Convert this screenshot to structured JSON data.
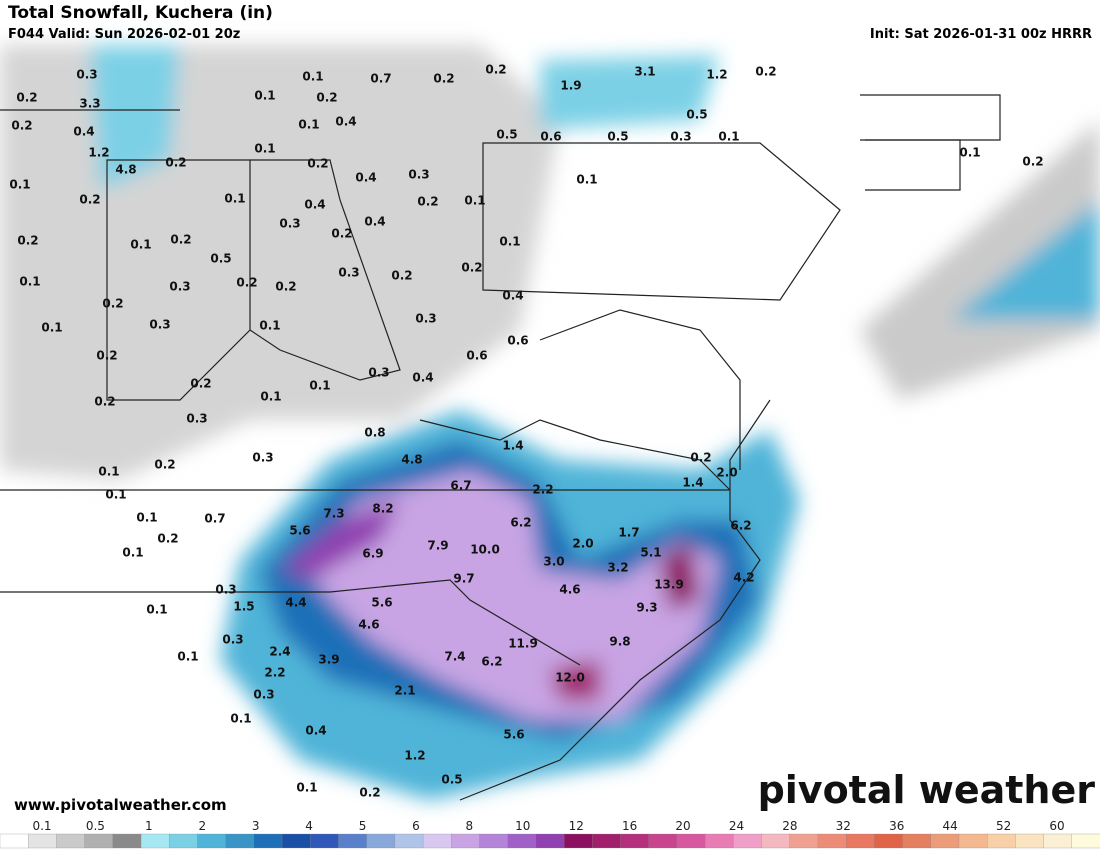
{
  "header": {
    "title": "Total Snowfall, Kuchera (in)",
    "valid": "F044 Valid: Sun 2026-02-01 20z",
    "init": "Init: Sat 2026-01-31 00z HRRR"
  },
  "footer": {
    "site": "www.pivotalweather.com",
    "logo": "pivotal weather"
  },
  "colorbar": {
    "labels": [
      "0.1",
      "0.5",
      "1",
      "2",
      "3",
      "4",
      "5",
      "6",
      "8",
      "10",
      "12",
      "16",
      "20",
      "24",
      "28",
      "32",
      "36",
      "44",
      "52",
      "60"
    ],
    "colors": [
      "#ffffff",
      "#e4e4e4",
      "#cacaca",
      "#b0b0b0",
      "#8a8a8a",
      "#a6e8f2",
      "#7cd0e6",
      "#4fb4d8",
      "#3a94c6",
      "#1f6fb8",
      "#1a4fa6",
      "#3058b8",
      "#5a80cc",
      "#88a8dc",
      "#b0c4e8",
      "#d8c8f0",
      "#c8a4e4",
      "#b484d8",
      "#a060c8",
      "#9040b0",
      "#8c1060",
      "#a0206c",
      "#b4307c",
      "#c8448c",
      "#d858a0",
      "#e87cb4",
      "#f0a0c8",
      "#f4b8c0",
      "#f0a090",
      "#ec8c78",
      "#e87860",
      "#e06448",
      "#e48060",
      "#ec9c78",
      "#f4b890",
      "#f8d0a8",
      "#fae4c0",
      "#fcf0d4",
      "#fefadc"
    ]
  },
  "map": {
    "labels": [
      "0.3",
      "0.1",
      "0.7",
      "0.2",
      "0.2",
      "3.1",
      "1.2",
      "0.2",
      "0.2",
      "3.3",
      "0.1",
      "0.2",
      "1.9",
      "0.2",
      "0.4",
      "0.1",
      "0.4",
      "0.5",
      "0.5",
      "0.6",
      "0.5",
      "0.3",
      "0.1",
      "1.2",
      "0.1",
      "4.8",
      "0.2",
      "0.2",
      "0.4",
      "0.3",
      "0.1",
      "0.2",
      "0.1",
      "0.2",
      "0.1",
      "0.4",
      "0.2",
      "0.1",
      "0.1",
      "0.3",
      "0.4",
      "0.2",
      "0.2",
      "0.1",
      "0.2",
      "0.1",
      "0.5",
      "0.3",
      "0.2",
      "0.2",
      "0.1",
      "0.3",
      "0.2",
      "0.2",
      "0.4",
      "0.2",
      "0.1",
      "0.3",
      "0.1",
      "0.3",
      "0.6",
      "0.2",
      "0.6",
      "0.3",
      "0.4",
      "0.2",
      "0.1",
      "0.1",
      "0.2",
      "0.3",
      "0.8",
      "1.4",
      "0.3",
      "4.8",
      "0.2",
      "2.0",
      "0.1",
      "0.2",
      "6.7",
      "1.4",
      "2.2",
      "0.1",
      "8.2",
      "7.3",
      "0.1",
      "0.7",
      "6.2",
      "6.2",
      "1.7",
      "5.6",
      "0.2",
      "2.0",
      "7.9",
      "10.0",
      "5.1",
      "6.9",
      "0.1",
      "3.0",
      "3.2",
      "13.9",
      "4.2",
      "9.7",
      "0.3",
      "4.6",
      "1.5",
      "4.4",
      "5.6",
      "9.3",
      "0.1",
      "4.6",
      "0.3",
      "9.8",
      "11.9",
      "0.1",
      "2.4",
      "7.4",
      "6.2",
      "3.9",
      "2.2",
      "12.0",
      "0.3",
      "2.1",
      "0.1",
      "0.4",
      "5.6",
      "1.2",
      "0.5",
      "0.1",
      "0.2"
    ]
  }
}
